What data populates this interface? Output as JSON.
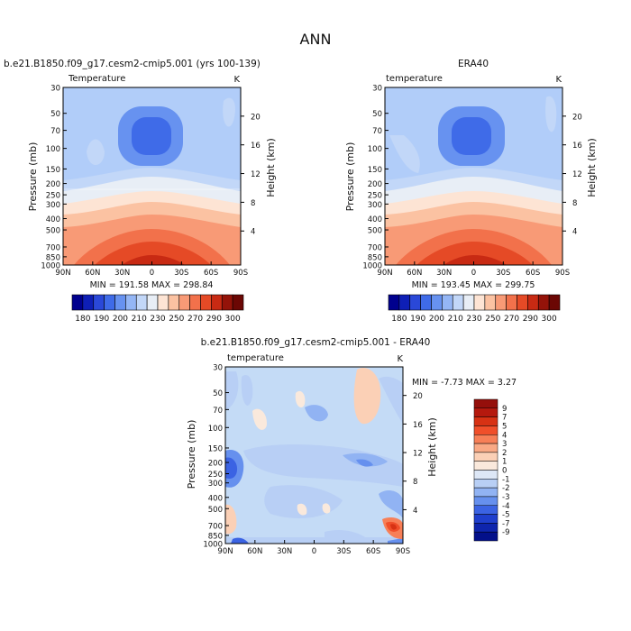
{
  "chart_data": [
    {
      "type": "heatmap",
      "title": "ANN",
      "subtitle": "b.e21.B1850.f09_g17.cesm2-cmip5.001 (yrs 100-139)",
      "variable": "Temperature",
      "units": "K",
      "xlabel": "",
      "ylabel": "Pressure (mb)",
      "right_label": "Height (km)",
      "x_ticks": [
        "90N",
        "60N",
        "30N",
        "0",
        "30S",
        "60S",
        "90S"
      ],
      "y_ticks": [
        "30",
        "50",
        "70",
        "100",
        "150",
        "200",
        "250",
        "300",
        "400",
        "500",
        "700",
        "850",
        "1000"
      ],
      "height_ticks": [
        "20",
        "16",
        "12",
        "8",
        "4"
      ],
      "stats_text": "MIN = 191.58   MAX = 298.84",
      "min": 191.58,
      "max": 298.84,
      "colorbar_labels": [
        "180",
        "190",
        "200",
        "210",
        "230",
        "250",
        "270",
        "290",
        "300"
      ]
    },
    {
      "type": "heatmap",
      "subtitle": "ERA40",
      "variable": "temperature",
      "units": "K",
      "ylabel": "Pressure (mb)",
      "right_label": "Height (km)",
      "x_ticks": [
        "90N",
        "60N",
        "30N",
        "0",
        "30S",
        "60S",
        "90S"
      ],
      "y_ticks": [
        "30",
        "50",
        "70",
        "100",
        "150",
        "200",
        "250",
        "300",
        "400",
        "500",
        "700",
        "850",
        "1000"
      ],
      "height_ticks": [
        "20",
        "16",
        "12",
        "8",
        "4"
      ],
      "stats_text": "MIN = 193.45   MAX = 299.75",
      "min": 193.45,
      "max": 299.75,
      "colorbar_labels": [
        "180",
        "190",
        "200",
        "210",
        "230",
        "250",
        "270",
        "290",
        "300"
      ]
    },
    {
      "type": "heatmap",
      "subtitle": "b.e21.B1850.f09_g17.cesm2-cmip5.001 - ERA40",
      "variable": "temperature",
      "units": "K",
      "ylabel": "Pressure (mb)",
      "right_label": "Height (km)",
      "x_ticks": [
        "90N",
        "60N",
        "30N",
        "0",
        "30S",
        "60S",
        "90S"
      ],
      "y_ticks": [
        "30",
        "50",
        "70",
        "100",
        "150",
        "200",
        "250",
        "300",
        "400",
        "500",
        "700",
        "850",
        "1000"
      ],
      "height_ticks": [
        "20",
        "16",
        "12",
        "8",
        "4"
      ],
      "stats_text": "MIN =   -7.73   MAX =    3.27",
      "min": -7.73,
      "max": 3.27,
      "colorbar_labels": [
        "9",
        "7",
        "5",
        "4",
        "3",
        "2",
        "1",
        "0",
        "-1",
        "-2",
        "-3",
        "-4",
        "-5",
        "-7",
        "-9"
      ]
    }
  ],
  "colors": {
    "panel_top_bg": "#b1cdf9",
    "panel_diff_bg": "#c4dbf6",
    "temp_scale": [
      "#00008e",
      "#0e1fb6",
      "#2a48d8",
      "#3f6be8",
      "#6792f0",
      "#94b6f5",
      "#c2d7f8",
      "#e8eef6",
      "#fde4d4",
      "#fbc2a2",
      "#f89a76",
      "#f2714b",
      "#e54a26",
      "#c82a13",
      "#941309",
      "#6b0704"
    ],
    "diff_scale": [
      "#950f0b",
      "#b5190e",
      "#d73214",
      "#f04f2a",
      "#f77f57",
      "#f9a985",
      "#fbd0b6",
      "#fae9dc",
      "#dde7f6",
      "#b8cff5",
      "#91b3f3",
      "#6690ee",
      "#3b63e3",
      "#1f3fcd",
      "#0e25ad",
      "#03108a"
    ]
  }
}
